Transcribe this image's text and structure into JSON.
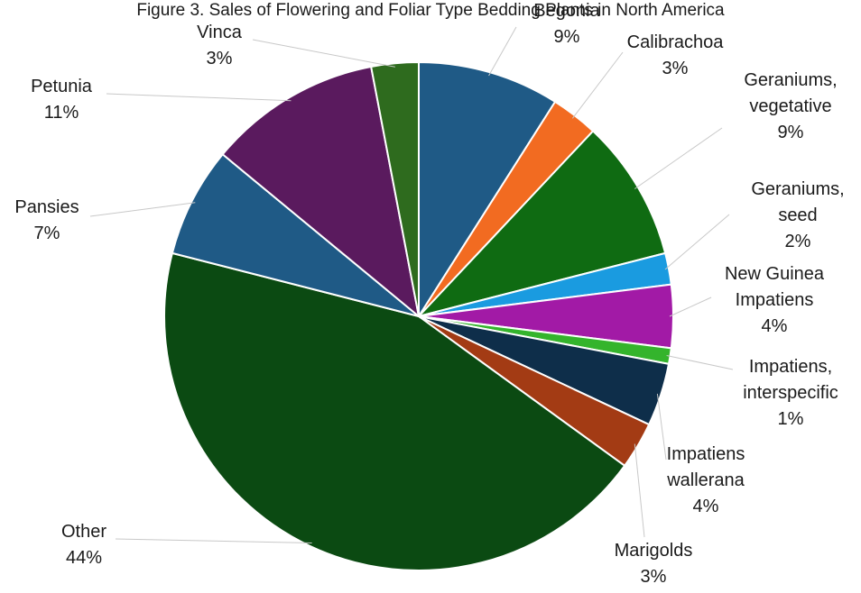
{
  "chart_data": {
    "type": "pie",
    "title": "Figure 3. Sales of Flowering and Foliar Type Bedding Plants in North America",
    "start_angle_deg": 0,
    "direction": "clockwise",
    "slices": [
      {
        "name": "Begonia",
        "percent": 9,
        "label": "9%",
        "color": "#1f5a86"
      },
      {
        "name": "Calibrachoa",
        "percent": 3,
        "label": "3%",
        "color": "#f26b21"
      },
      {
        "name": "Geraniums, vegetative",
        "percent": 9,
        "label": "9%",
        "color": "#0f6b12"
      },
      {
        "name": "Geraniums, seed",
        "percent": 2,
        "label": "2%",
        "color": "#1a9be0"
      },
      {
        "name": "New Guinea Impatiens",
        "percent": 4,
        "label": "4%",
        "color": "#a21aa6"
      },
      {
        "name": "Impatiens, interspecific",
        "percent": 1,
        "label": "1%",
        "color": "#34b42c"
      },
      {
        "name": "Impatiens wallerana",
        "percent": 4,
        "label": "4%",
        "color": "#0e2e4a"
      },
      {
        "name": "Marigolds",
        "percent": 3,
        "label": "3%",
        "color": "#a33b14"
      },
      {
        "name": "Other",
        "percent": 44,
        "label": "44%",
        "color": "#0b4a12"
      },
      {
        "name": "Pansies",
        "percent": 7,
        "label": "7%",
        "color": "#1f5a86"
      },
      {
        "name": "Petunia",
        "percent": 11,
        "label": "11%",
        "color": "#5a1a5e"
      },
      {
        "name": "Vinca",
        "percent": 3,
        "label": "3%",
        "color": "#2e6b1e"
      }
    ]
  }
}
